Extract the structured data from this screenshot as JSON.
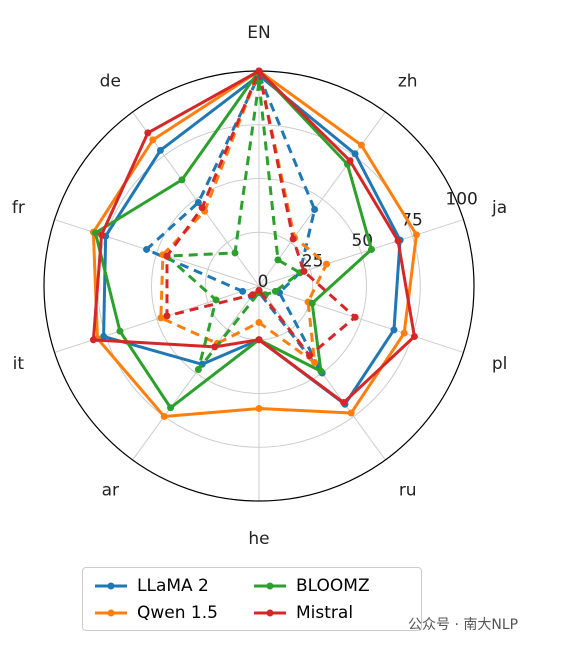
{
  "chart_data": {
    "type": "radar",
    "categories": [
      "EN",
      "zh",
      "ja",
      "pl",
      "ru",
      "he",
      "ar",
      "it",
      "fr",
      "de"
    ],
    "series": [
      {
        "name": "LLaMA 2",
        "color": "#1f77b4",
        "values": [
          98,
          76,
          69,
          66,
          68,
          25,
          45,
          76,
          75,
          78
        ],
        "dashed_values": [
          98,
          44,
          20,
          10,
          50,
          3,
          6,
          8,
          55,
          48
        ]
      },
      {
        "name": "Qwen 1.5",
        "color": "#ff7f0e",
        "values": [
          100,
          81,
          77,
          71,
          73,
          57,
          75,
          79,
          81,
          84
        ],
        "dashed_values": [
          100,
          28,
          33,
          24,
          44,
          17,
          33,
          48,
          47,
          43
        ]
      },
      {
        "name": "BLOOMZ",
        "color": "#2ca02c",
        "values": [
          100,
          70,
          55,
          26,
          49,
          25,
          70,
          68,
          80,
          61
        ],
        "dashed_values": [
          95,
          15,
          20,
          8,
          5,
          3,
          48,
          21,
          45,
          19
        ]
      },
      {
        "name": "Mistral",
        "color": "#d62728",
        "values": [
          100,
          72,
          68,
          76,
          67,
          25,
          35,
          81,
          77,
          88
        ],
        "dashed_values": [
          100,
          27,
          22,
          47,
          40,
          2,
          5,
          45,
          45,
          45
        ]
      }
    ],
    "rlim": [
      0,
      100
    ],
    "rticks": [
      0,
      25,
      50,
      75,
      100
    ],
    "grid": true,
    "watermark": "公众号 · 南大NLP"
  }
}
